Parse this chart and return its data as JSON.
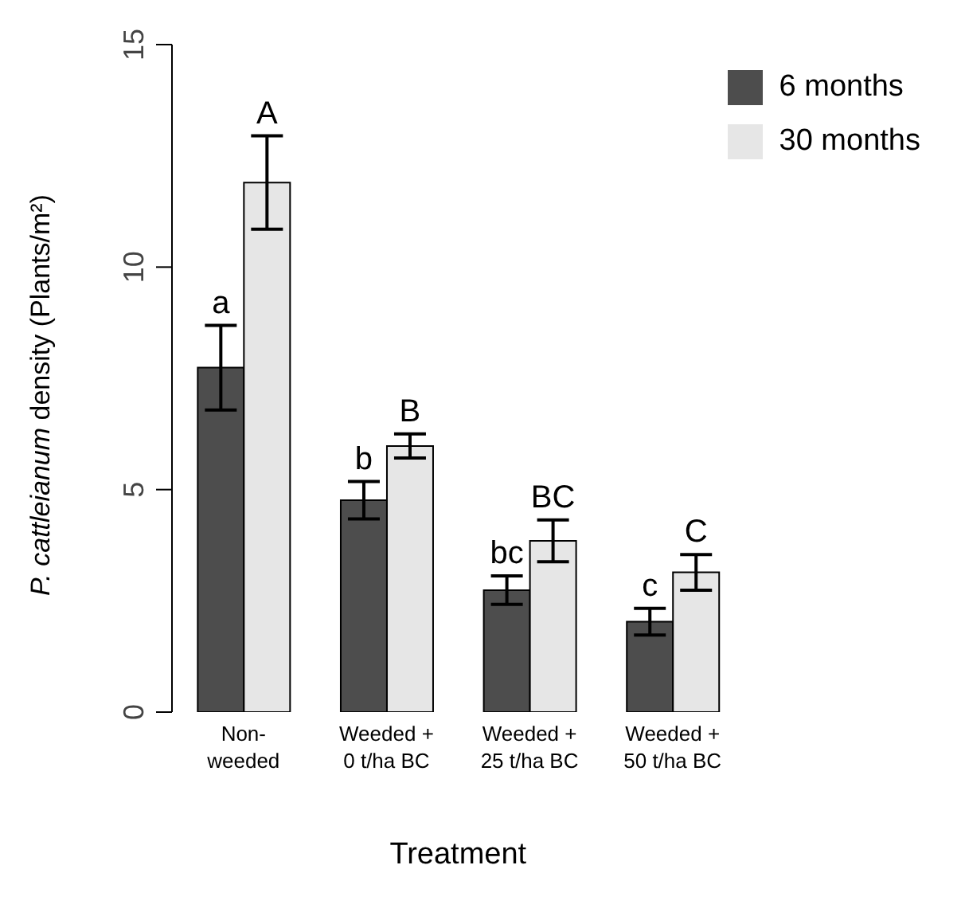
{
  "chart_data": {
    "type": "bar",
    "xlabel": "Treatment",
    "ylabel": "P. cattleianum density (Plants/m²)",
    "categories": [
      "Non-\nweeded",
      "Weeded +\n0 t/ha BC",
      "Weeded +\n25 t/ha BC",
      "Weeded +\n50 t/ha BC"
    ],
    "series": [
      {
        "name": "6 months",
        "color": "#4d4d4d",
        "values": [
          7.74,
          4.76,
          2.74,
          2.03
        ],
        "errors": [
          0.95,
          0.42,
          0.32,
          0.3
        ]
      },
      {
        "name": "30 months",
        "color": "#e6e6e6",
        "values": [
          11.9,
          5.98,
          3.85,
          3.14
        ],
        "errors": [
          1.05,
          0.27,
          0.47,
          0.4
        ]
      }
    ],
    "ylim": [
      0,
      15
    ],
    "yticks": [
      0,
      5,
      10,
      15
    ],
    "grid": false,
    "legend": "top right",
    "annotations": [
      "a",
      "A",
      "b",
      "B",
      "bc",
      "BC",
      "c",
      "C"
    ]
  }
}
